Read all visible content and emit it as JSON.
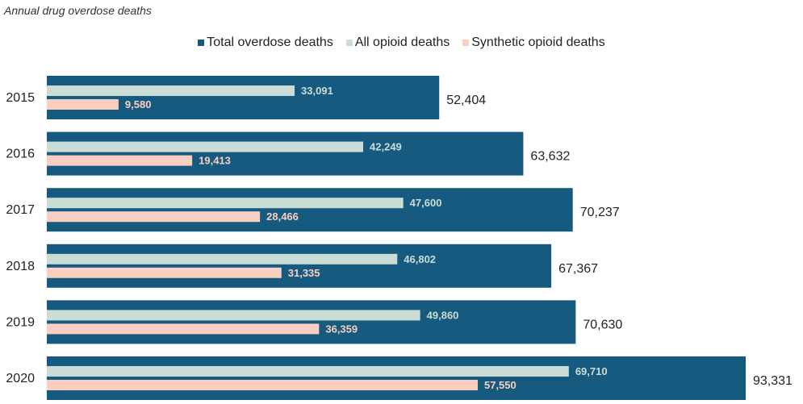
{
  "chart_data": {
    "type": "bar",
    "orientation": "horizontal",
    "title": "Annual drug overdose deaths",
    "categories": [
      "2015",
      "2016",
      "2017",
      "2018",
      "2019",
      "2020"
    ],
    "series": [
      {
        "name": "Total overdose deaths",
        "color": "#165a7f",
        "values": [
          52404,
          63632,
          70237,
          67367,
          70630,
          93331
        ],
        "labels": [
          "52,404",
          "63,632",
          "70,237",
          "67,367",
          "70,630",
          "93,331"
        ]
      },
      {
        "name": "All opioid deaths",
        "color": "#c9ddd6",
        "values": [
          33091,
          42249,
          47600,
          46802,
          49860,
          69710
        ],
        "labels": [
          "33,091",
          "42,249",
          "47,600",
          "46,802",
          "49,860",
          "69,710"
        ]
      },
      {
        "name": "Synthetic opioid deaths",
        "color": "#f8cfc0",
        "values": [
          9580,
          19413,
          28466,
          31335,
          36359,
          57550
        ],
        "labels": [
          "9,580",
          "19,413",
          "28,466",
          "31,335",
          "36,359",
          "57,550"
        ]
      }
    ],
    "legend_position": "top-center",
    "grid": false
  }
}
